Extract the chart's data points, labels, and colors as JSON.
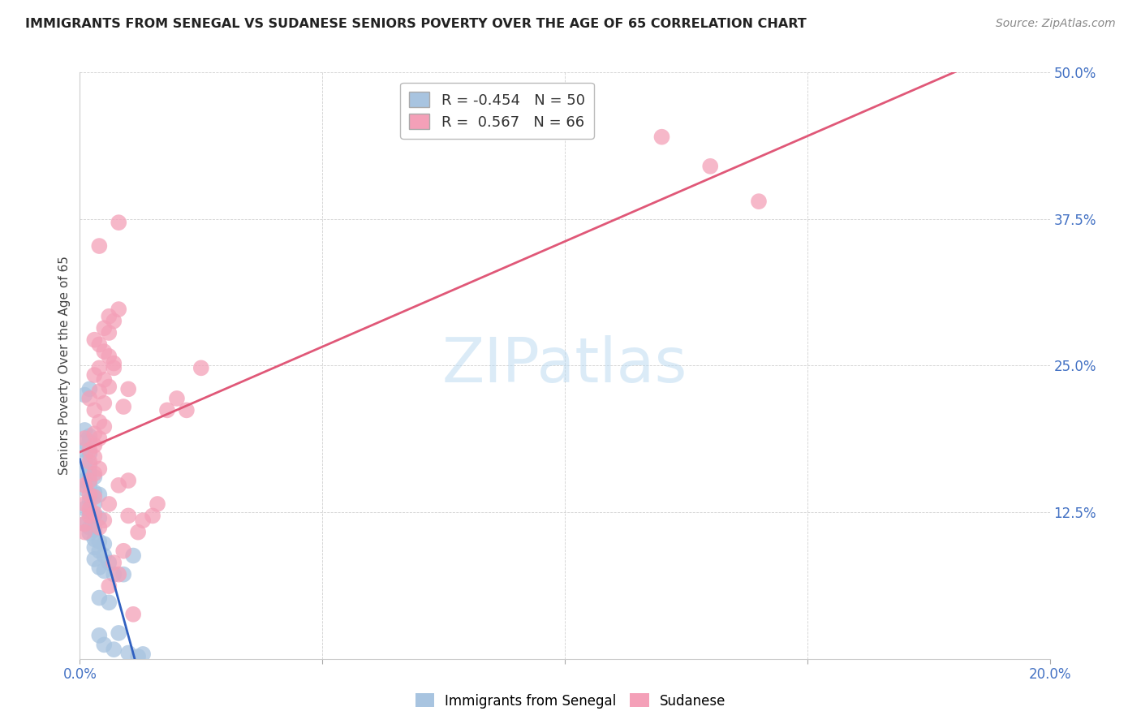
{
  "title": "IMMIGRANTS FROM SENEGAL VS SUDANESE SENIORS POVERTY OVER THE AGE OF 65 CORRELATION CHART",
  "source": "Source: ZipAtlas.com",
  "ylabel": "Seniors Poverty Over the Age of 65",
  "xlim": [
    0.0,
    0.2
  ],
  "ylim": [
    0.0,
    0.5
  ],
  "xtick_positions": [
    0.0,
    0.05,
    0.1,
    0.15,
    0.2
  ],
  "xtick_labels": [
    "0.0%",
    "",
    "",
    "",
    "20.0%"
  ],
  "ytick_positions": [
    0.0,
    0.125,
    0.25,
    0.375,
    0.5
  ],
  "ytick_labels": [
    "",
    "12.5%",
    "25.0%",
    "37.5%",
    "50.0%"
  ],
  "senegal_color": "#a8c4e0",
  "sudanese_color": "#f4a0b8",
  "senegal_line_color": "#3060c0",
  "sudanese_line_color": "#e05878",
  "R_senegal": -0.454,
  "N_senegal": 50,
  "R_sudanese": 0.567,
  "N_sudanese": 66,
  "watermark": "ZIPatlas",
  "watermark_color": "#b8d8f0",
  "background_color": "#ffffff",
  "legend_label_senegal": "Immigrants from Senegal",
  "legend_label_sudanese": "Sudanese",
  "title_fontsize": 11.5,
  "source_fontsize": 10,
  "tick_fontsize": 12,
  "ylabel_fontsize": 11,
  "senegal_points": [
    [
      0.001,
      0.225
    ],
    [
      0.002,
      0.23
    ],
    [
      0.001,
      0.195
    ],
    [
      0.002,
      0.19
    ],
    [
      0.001,
      0.185
    ],
    [
      0.002,
      0.185
    ],
    [
      0.001,
      0.178
    ],
    [
      0.002,
      0.175
    ],
    [
      0.001,
      0.168
    ],
    [
      0.002,
      0.165
    ],
    [
      0.001,
      0.16
    ],
    [
      0.002,
      0.158
    ],
    [
      0.003,
      0.155
    ],
    [
      0.001,
      0.152
    ],
    [
      0.002,
      0.148
    ],
    [
      0.001,
      0.145
    ],
    [
      0.003,
      0.142
    ],
    [
      0.004,
      0.14
    ],
    [
      0.002,
      0.135
    ],
    [
      0.003,
      0.132
    ],
    [
      0.001,
      0.128
    ],
    [
      0.002,
      0.125
    ],
    [
      0.003,
      0.122
    ],
    [
      0.004,
      0.12
    ],
    [
      0.001,
      0.115
    ],
    [
      0.002,
      0.112
    ],
    [
      0.003,
      0.11
    ],
    [
      0.002,
      0.107
    ],
    [
      0.003,
      0.102
    ],
    [
      0.004,
      0.1
    ],
    [
      0.005,
      0.098
    ],
    [
      0.003,
      0.095
    ],
    [
      0.004,
      0.092
    ],
    [
      0.005,
      0.088
    ],
    [
      0.003,
      0.085
    ],
    [
      0.006,
      0.082
    ],
    [
      0.004,
      0.078
    ],
    [
      0.005,
      0.075
    ],
    [
      0.007,
      0.072
    ],
    [
      0.004,
      0.052
    ],
    [
      0.006,
      0.048
    ],
    [
      0.009,
      0.072
    ],
    [
      0.011,
      0.088
    ],
    [
      0.008,
      0.022
    ],
    [
      0.013,
      0.004
    ],
    [
      0.01,
      0.005
    ],
    [
      0.005,
      0.012
    ],
    [
      0.007,
      0.008
    ],
    [
      0.004,
      0.02
    ],
    [
      0.012,
      0.002
    ]
  ],
  "sudanese_points": [
    [
      0.001,
      0.108
    ],
    [
      0.001,
      0.115
    ],
    [
      0.002,
      0.122
    ],
    [
      0.002,
      0.128
    ],
    [
      0.001,
      0.132
    ],
    [
      0.002,
      0.14
    ],
    [
      0.003,
      0.138
    ],
    [
      0.001,
      0.148
    ],
    [
      0.002,
      0.152
    ],
    [
      0.003,
      0.158
    ],
    [
      0.004,
      0.162
    ],
    [
      0.002,
      0.168
    ],
    [
      0.003,
      0.172
    ],
    [
      0.002,
      0.178
    ],
    [
      0.003,
      0.182
    ],
    [
      0.001,
      0.188
    ],
    [
      0.004,
      0.188
    ],
    [
      0.003,
      0.192
    ],
    [
      0.005,
      0.198
    ],
    [
      0.004,
      0.202
    ],
    [
      0.003,
      0.212
    ],
    [
      0.005,
      0.218
    ],
    [
      0.002,
      0.222
    ],
    [
      0.004,
      0.228
    ],
    [
      0.006,
      0.232
    ],
    [
      0.005,
      0.238
    ],
    [
      0.003,
      0.242
    ],
    [
      0.004,
      0.248
    ],
    [
      0.007,
      0.252
    ],
    [
      0.006,
      0.258
    ],
    [
      0.005,
      0.262
    ],
    [
      0.004,
      0.268
    ],
    [
      0.003,
      0.272
    ],
    [
      0.006,
      0.278
    ],
    [
      0.005,
      0.282
    ],
    [
      0.007,
      0.288
    ],
    [
      0.006,
      0.292
    ],
    [
      0.008,
      0.298
    ],
    [
      0.004,
      0.112
    ],
    [
      0.005,
      0.118
    ],
    [
      0.003,
      0.124
    ],
    [
      0.006,
      0.132
    ],
    [
      0.008,
      0.148
    ],
    [
      0.01,
      0.152
    ],
    [
      0.007,
      0.082
    ],
    [
      0.009,
      0.092
    ],
    [
      0.006,
      0.062
    ],
    [
      0.008,
      0.072
    ],
    [
      0.012,
      0.108
    ],
    [
      0.013,
      0.118
    ],
    [
      0.01,
      0.122
    ],
    [
      0.011,
      0.038
    ],
    [
      0.015,
      0.122
    ],
    [
      0.016,
      0.132
    ],
    [
      0.018,
      0.212
    ],
    [
      0.02,
      0.222
    ],
    [
      0.022,
      0.212
    ],
    [
      0.025,
      0.248
    ],
    [
      0.004,
      0.352
    ],
    [
      0.007,
      0.248
    ],
    [
      0.009,
      0.215
    ],
    [
      0.01,
      0.23
    ],
    [
      0.008,
      0.372
    ],
    [
      0.12,
      0.445
    ],
    [
      0.14,
      0.39
    ],
    [
      0.13,
      0.42
    ]
  ]
}
